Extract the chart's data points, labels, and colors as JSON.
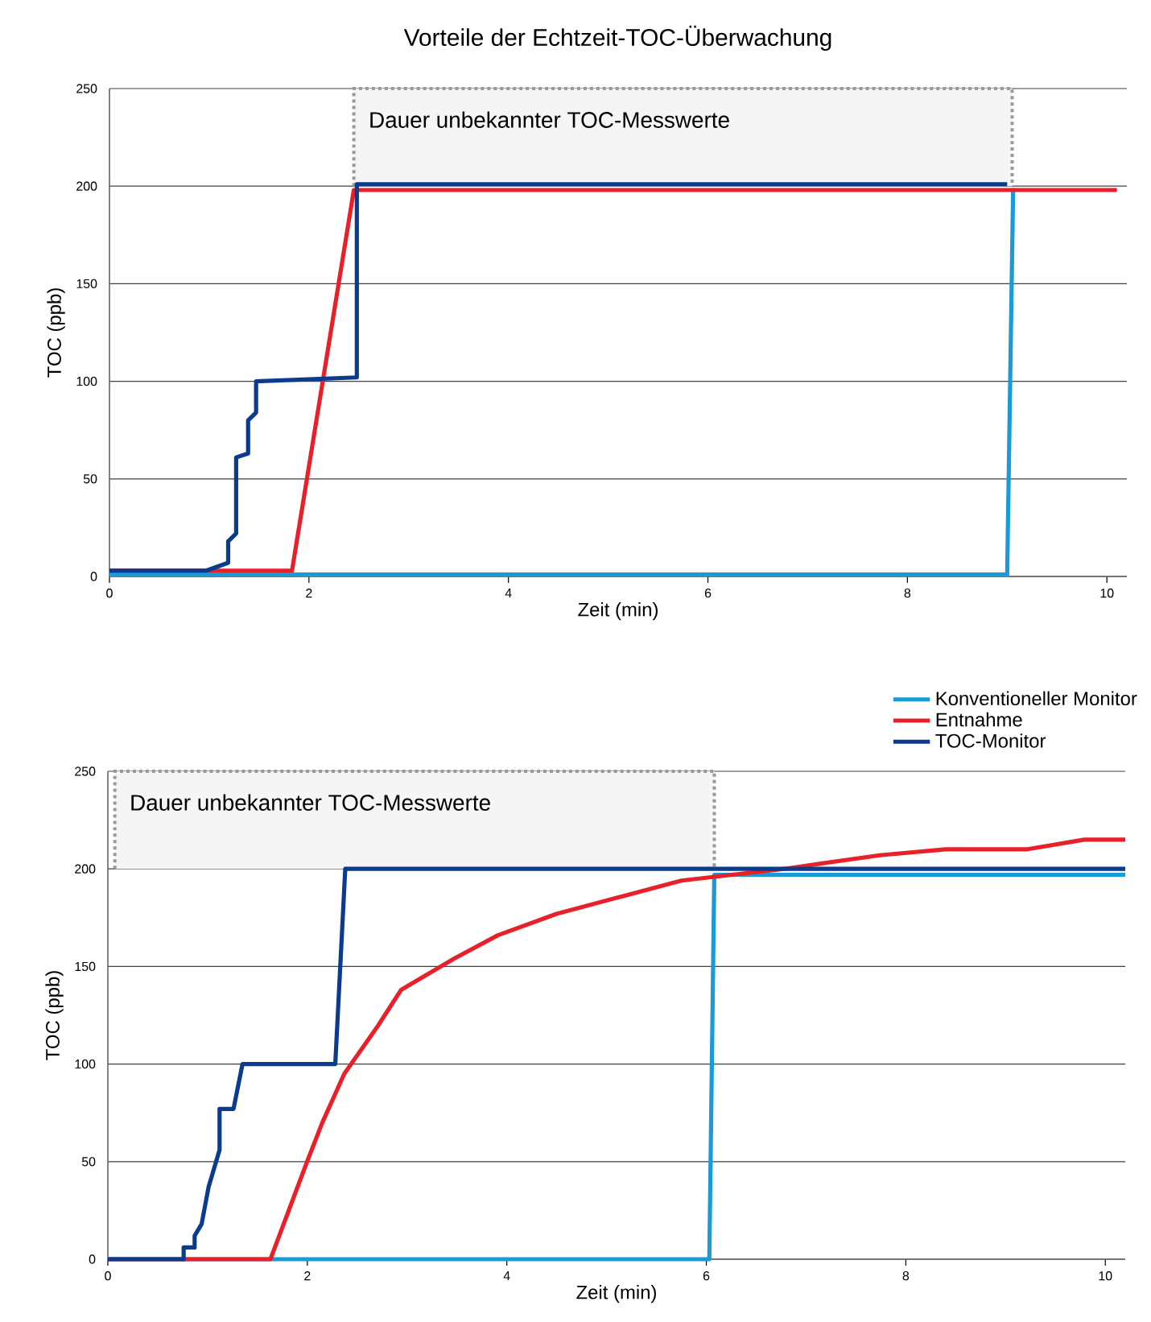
{
  "chart_data": [
    {
      "type": "line",
      "title": "Vorteile der Echtzeit-TOC-Überwachung",
      "xlabel": "Zeit (min)",
      "ylabel": "TOC (ppb)",
      "xlim": [
        0,
        10.2
      ],
      "ylim": [
        0,
        250
      ],
      "xticks": [
        0,
        2,
        4,
        6,
        8,
        10
      ],
      "yticks": [
        0,
        50,
        100,
        150,
        200,
        250
      ],
      "grid": "y",
      "bands": [
        {
          "axis": "x",
          "from": 2.45,
          "to": 9.05,
          "label": "Dauer unbekannter TOC-Messwerte"
        }
      ],
      "series": [
        {
          "color": "#1a9ad6",
          "x": [
            0,
            9.0,
            9.06
          ],
          "values": [
            1,
            1,
            199
          ]
        },
        {
          "color": "#e8202a",
          "x": [
            0,
            1.83,
            2.45,
            10.1
          ],
          "values": [
            3,
            3,
            198,
            198
          ]
        },
        {
          "color": "#0b3b8c",
          "x": [
            0,
            0.97,
            1.19,
            1.19,
            1.27,
            1.27,
            1.39,
            1.39,
            1.47,
            1.47,
            2.48,
            2.48,
            9.0
          ],
          "values": [
            3,
            3,
            7,
            18,
            22,
            61,
            63,
            80,
            84,
            100,
            102,
            201,
            201
          ]
        }
      ]
    },
    {
      "type": "line",
      "xlabel": "Zeit (min)",
      "ylabel": "TOC (ppb)",
      "xlim": [
        0,
        10.2
      ],
      "ylim": [
        0,
        250
      ],
      "xticks": [
        0,
        2,
        4,
        6,
        8,
        10
      ],
      "yticks": [
        0,
        50,
        100,
        150,
        200,
        250
      ],
      "grid": "y",
      "legend": "top right",
      "bands": [
        {
          "axis": "x",
          "from": 0.07,
          "to": 6.08,
          "label": "Dauer unbekannter TOC-Messwerte"
        }
      ],
      "series": [
        {
          "name": "Konventioneller Monitor",
          "color": "#1a9ad6",
          "x": [
            0,
            6.03,
            6.08,
            10.2
          ],
          "values": [
            0,
            0,
            197,
            197
          ]
        },
        {
          "name": "Entnahme",
          "color": "#e8202a",
          "x": [
            0,
            1.63,
            1.99,
            2.15,
            2.37,
            2.7,
            2.94,
            3.47,
            3.91,
            4.5,
            5.16,
            5.75,
            6.26,
            6.78,
            7.74,
            8.4,
            9.21,
            9.79,
            10.2
          ],
          "values": [
            0,
            0,
            49,
            70,
            95,
            119,
            138,
            154,
            166,
            177,
            186,
            194,
            197,
            200,
            207,
            210,
            210,
            215,
            215
          ]
        },
        {
          "name": "TOC-Monitor",
          "color": "#0b3b8c",
          "x": [
            0,
            0.76,
            0.76,
            0.87,
            0.87,
            0.94,
            1.01,
            1.12,
            1.12,
            1.26,
            1.35,
            2.28,
            2.38,
            10.2
          ],
          "values": [
            0,
            0,
            6,
            6,
            12,
            18,
            37,
            56,
            77,
            77,
            100,
            100,
            200,
            200
          ]
        }
      ]
    }
  ]
}
